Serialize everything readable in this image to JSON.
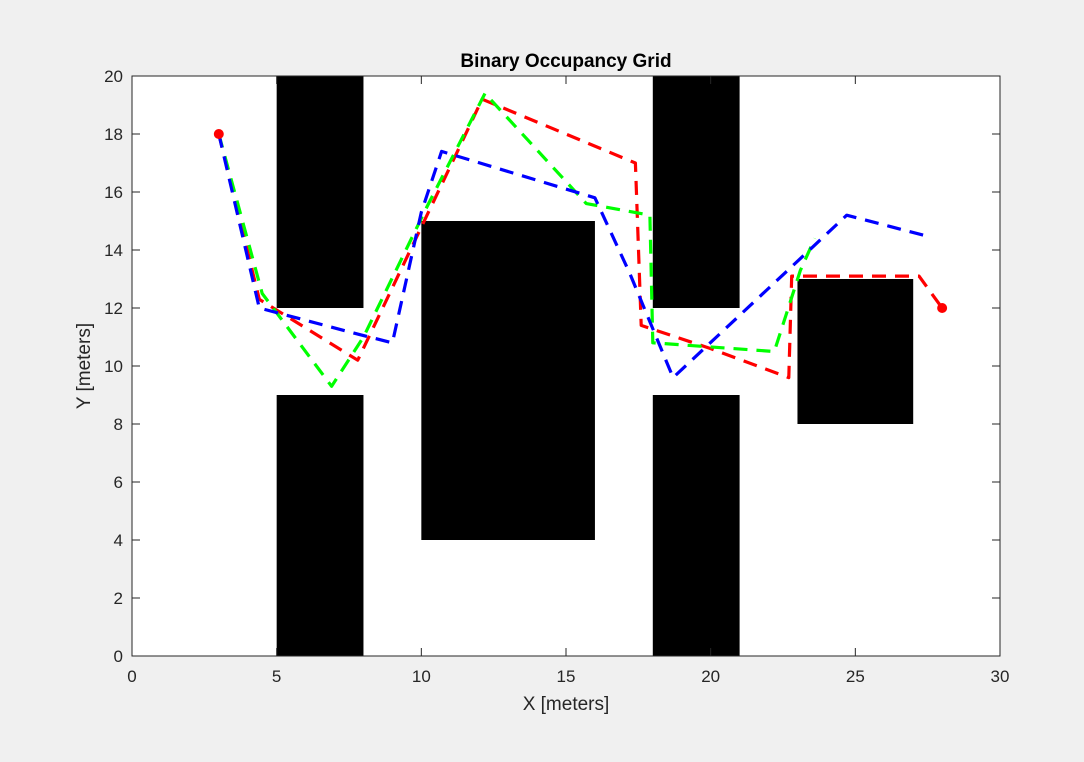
{
  "chart_data": {
    "type": "line",
    "title": "Binary Occupancy Grid",
    "xlabel": "X [meters]",
    "ylabel": "Y [meters]",
    "xlim": [
      0,
      30
    ],
    "ylim": [
      0,
      20
    ],
    "xticks": [
      0,
      5,
      10,
      15,
      20,
      25,
      30
    ],
    "yticks": [
      0,
      2,
      4,
      6,
      8,
      10,
      12,
      14,
      16,
      18,
      20
    ],
    "grid": false,
    "obstacles": [
      {
        "x": [
          5,
          8
        ],
        "y": [
          12,
          20
        ]
      },
      {
        "x": [
          5,
          8
        ],
        "y": [
          0,
          9
        ]
      },
      {
        "x": [
          10,
          16
        ],
        "y": [
          4,
          15
        ]
      },
      {
        "x": [
          18,
          21
        ],
        "y": [
          12,
          20
        ]
      },
      {
        "x": [
          18,
          21
        ],
        "y": [
          0,
          9
        ]
      },
      {
        "x": [
          23,
          27
        ],
        "y": [
          8,
          13
        ]
      }
    ],
    "markers": [
      {
        "x": 3,
        "y": 18,
        "color": "#ff0000"
      },
      {
        "x": 28,
        "y": 12,
        "color": "#ff0000"
      }
    ],
    "series": [
      {
        "color": "#ff0000",
        "style": "dashed",
        "points": [
          [
            3,
            18
          ],
          [
            4.4,
            12.3
          ],
          [
            7.8,
            10.2
          ],
          [
            11.2,
            17.3
          ],
          [
            12.1,
            19.2
          ],
          [
            17.4,
            17
          ],
          [
            17.6,
            11.4
          ],
          [
            20,
            10.6
          ],
          [
            22.7,
            9.6
          ],
          [
            22.8,
            13.1
          ],
          [
            27.2,
            13.1
          ],
          [
            28,
            12
          ]
        ]
      },
      {
        "color": "#00ff00",
        "style": "dashed",
        "points": [
          [
            3,
            18
          ],
          [
            4.5,
            12.5
          ],
          [
            6.9,
            9.3
          ],
          [
            8,
            11
          ],
          [
            10.2,
            15.5
          ],
          [
            12.2,
            19.4
          ],
          [
            15.7,
            15.6
          ],
          [
            17.9,
            15.2
          ],
          [
            18,
            10.8
          ],
          [
            22.2,
            10.5
          ],
          [
            23.1,
            13.3
          ],
          [
            23.6,
            14.4
          ]
        ]
      },
      {
        "color": "#0000ff",
        "style": "dashed",
        "points": [
          [
            3,
            18
          ],
          [
            4.4,
            12
          ],
          [
            7.8,
            11.1
          ],
          [
            9,
            10.8
          ],
          [
            10,
            15.3
          ],
          [
            10.7,
            17.4
          ],
          [
            16,
            15.8
          ],
          [
            17.2,
            13.2
          ],
          [
            18.7,
            9.6
          ],
          [
            24.7,
            15.2
          ],
          [
            27.4,
            14.5
          ]
        ]
      }
    ]
  }
}
